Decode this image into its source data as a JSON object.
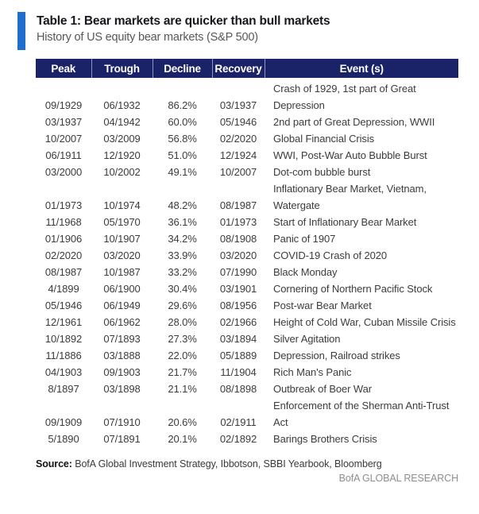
{
  "colors": {
    "header_bg": "#1A2368",
    "accent_bar": "#1F6DCD",
    "header_text": "#FFFFFF",
    "body_text": "#3C3C3C",
    "subtitle_text": "#585858",
    "brand_text": "#8E8E8E"
  },
  "header": {
    "title": "Table 1: Bear markets are quicker than bull markets",
    "subtitle": "History of US equity bear markets (S&P 500)"
  },
  "chart_data": {
    "type": "table",
    "title": "Table 1: Bear markets are quicker than bull markets",
    "subtitle": "History of US equity bear markets (S&P 500)",
    "columns": [
      "Peak",
      "Trough",
      "Decline",
      "Recovery",
      "Event (s)"
    ],
    "rows": [
      [
        "09/1929",
        "06/1932",
        "86.2%",
        "03/1937",
        "Crash of 1929, 1st part of Great Depression"
      ],
      [
        "03/1937",
        "04/1942",
        "60.0%",
        "05/1946",
        "2nd part of Great Depression, WWII"
      ],
      [
        "10/2007",
        "03/2009",
        "56.8%",
        "02/2020",
        "Global Financial Crisis"
      ],
      [
        "06/1911",
        "12/1920",
        "51.0%",
        "12/1924",
        "WWI, Post-War Auto Bubble Burst"
      ],
      [
        "03/2000",
        "10/2002",
        "49.1%",
        "10/2007",
        "Dot-com bubble burst"
      ],
      [
        "01/1973",
        "10/1974",
        "48.2%",
        "08/1987",
        "Inflationary Bear Market, Vietnam, Watergate"
      ],
      [
        "11/1968",
        "05/1970",
        "36.1%",
        "01/1973",
        "Start of Inflationary Bear Market"
      ],
      [
        "01/1906",
        "10/1907",
        "34.2%",
        "08/1908",
        "Panic of 1907"
      ],
      [
        "02/2020",
        "03/2020",
        "33.9%",
        "03/2020",
        "COVID-19 Crash of 2020"
      ],
      [
        "08/1987",
        "10/1987",
        "33.2%",
        "07/1990",
        "Black Monday"
      ],
      [
        "4/1899",
        "06/1900",
        "30.4%",
        "03/1901",
        "Cornering of Northern Pacific Stock"
      ],
      [
        "05/1946",
        "06/1949",
        "29.6%",
        "08/1956",
        "Post-war Bear Market"
      ],
      [
        "12/1961",
        "06/1962",
        "28.0%",
        "02/1966",
        "Height of Cold War, Cuban Missile Crisis"
      ],
      [
        "10/1892",
        "07/1893",
        "27.3%",
        "03/1894",
        "Silver Agitation"
      ],
      [
        "11/1886",
        "03/1888",
        "22.0%",
        "05/1889",
        "Depression, Railroad strikes"
      ],
      [
        "04/1903",
        "09/1903",
        "21.7%",
        "11/1904",
        "Rich Man's Panic"
      ],
      [
        "8/1897",
        "03/1898",
        "21.1%",
        "08/1898",
        "Outbreak of Boer War"
      ],
      [
        "09/1909",
        "07/1910",
        "20.6%",
        "02/1911",
        "Enforcement of the Sherman Anti-Trust Act"
      ],
      [
        "5/1890",
        "07/1891",
        "20.1%",
        "02/1892",
        "Barings Brothers Crisis"
      ]
    ]
  },
  "footer": {
    "source_label": "Source:",
    "source_text": "BofA Global Investment Strategy, Ibbotson, SBBI Yearbook, Bloomberg",
    "brand": "BofA GLOBAL RESEARCH"
  }
}
